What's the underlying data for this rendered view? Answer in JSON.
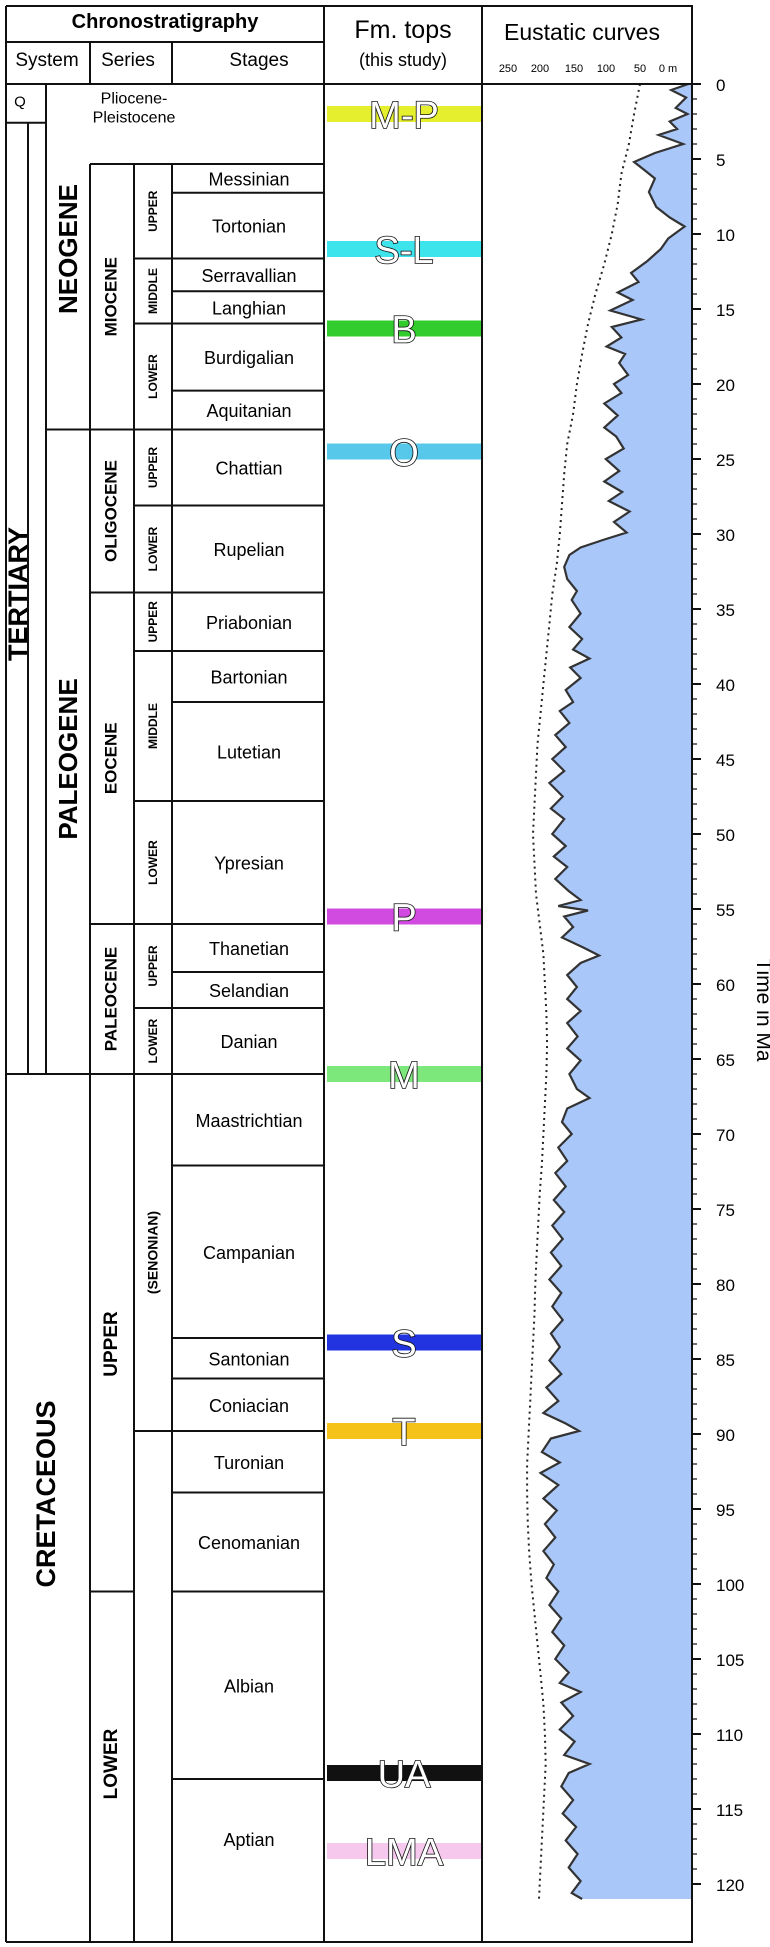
{
  "headers": {
    "chronostratigraphy": "Chronostratigraphy",
    "system": "System",
    "series": "Series",
    "stages": "Stages",
    "fm_tops": "Fm. tops",
    "this_study": "(this study)",
    "eustatic": "Eustatic curves",
    "time_label": "Time in Ma"
  },
  "curve_axis_ticks": [
    "250",
    "200",
    "150",
    "100",
    "50",
    "0 m"
  ],
  "time_ticks": [
    "0",
    "5",
    "10",
    "15",
    "20",
    "25",
    "30",
    "35",
    "40",
    "45",
    "50",
    "55",
    "60",
    "65",
    "70",
    "75",
    "80",
    "85",
    "90",
    "95",
    "100",
    "105",
    "110",
    "115",
    "120"
  ],
  "systems": [
    {
      "name": "Q",
      "top": 0,
      "base": 2.58
    },
    {
      "name": "TERTIARY",
      "top": 2.58,
      "base": 66
    },
    {
      "name": "NEOGENE",
      "top": 2.58,
      "base": 23.03
    },
    {
      "name": "PALEOGENE",
      "top": 23.03,
      "base": 66
    },
    {
      "name": "CRETACEOUS",
      "top": 66,
      "base": 121
    }
  ],
  "series": [
    {
      "name": "Pliocene-Pleistocene",
      "top": 0,
      "base": 5.33
    },
    {
      "name": "MIOCENE",
      "top": 5.33,
      "base": 23.03
    },
    {
      "name": "OLIGOCENE",
      "top": 23.03,
      "base": 33.9
    },
    {
      "name": "EOCENE",
      "top": 33.9,
      "base": 56
    },
    {
      "name": "PALEOCENE",
      "top": 56,
      "base": 66
    },
    {
      "name": "UPPER",
      "top": 66,
      "base": 100.5
    },
    {
      "name": "LOWER",
      "top": 100.5,
      "base": 121
    }
  ],
  "subseries": [
    {
      "name": "UPPER",
      "top": 5.33,
      "base": 11.63
    },
    {
      "name": "MIDDLE",
      "top": 11.63,
      "base": 15.97
    },
    {
      "name": "LOWER",
      "top": 15.97,
      "base": 23.03
    },
    {
      "name": "UPPER",
      "top": 23.03,
      "base": 28.1
    },
    {
      "name": "LOWER",
      "top": 28.1,
      "base": 33.9
    },
    {
      "name": "UPPER",
      "top": 33.9,
      "base": 37.8
    },
    {
      "name": "MIDDLE",
      "top": 37.8,
      "base": 47.8
    },
    {
      "name": "LOWER",
      "top": 47.8,
      "base": 56
    },
    {
      "name": "UPPER",
      "top": 56,
      "base": 61.6
    },
    {
      "name": "LOWER",
      "top": 61.6,
      "base": 66
    },
    {
      "name": "(SENONIAN)",
      "top": 66,
      "base": 89.8
    }
  ],
  "stages": [
    {
      "name": "Messinian",
      "top": 5.33,
      "base": 7.25
    },
    {
      "name": "Tortonian",
      "top": 7.25,
      "base": 11.63
    },
    {
      "name": "Serravallian",
      "top": 11.63,
      "base": 13.82
    },
    {
      "name": "Langhian",
      "top": 13.82,
      "base": 15.97
    },
    {
      "name": "Burdigalian",
      "top": 15.97,
      "base": 20.44
    },
    {
      "name": "Aquitanian",
      "top": 20.44,
      "base": 23.03
    },
    {
      "name": "Chattian",
      "top": 23.03,
      "base": 28.1
    },
    {
      "name": "Rupelian",
      "top": 28.1,
      "base": 33.9
    },
    {
      "name": "Priabonian",
      "top": 33.9,
      "base": 37.8
    },
    {
      "name": "Bartonian",
      "top": 37.8,
      "base": 41.2
    },
    {
      "name": "Lutetian",
      "top": 41.2,
      "base": 47.8
    },
    {
      "name": "Ypresian",
      "top": 47.8,
      "base": 56
    },
    {
      "name": "Thanetian",
      "top": 56,
      "base": 59.2
    },
    {
      "name": "Selandian",
      "top": 59.2,
      "base": 61.6
    },
    {
      "name": "Danian",
      "top": 61.6,
      "base": 66
    },
    {
      "name": "Maastrichtian",
      "top": 66,
      "base": 72.1
    },
    {
      "name": "Campanian",
      "top": 72.1,
      "base": 83.6
    },
    {
      "name": "Santonian",
      "top": 83.6,
      "base": 86.3
    },
    {
      "name": "Coniacian",
      "top": 86.3,
      "base": 89.8
    },
    {
      "name": "Turonian",
      "top": 89.8,
      "base": 93.9
    },
    {
      "name": "Cenomanian",
      "top": 93.9,
      "base": 100.5
    },
    {
      "name": "Albian",
      "top": 100.5,
      "base": 113
    },
    {
      "name": "Aptian",
      "top": 113,
      "base": 121
    }
  ],
  "formation_tops": [
    {
      "label": "M-P",
      "age": 2.0,
      "color": "#e6ef2e"
    },
    {
      "label": "S-L",
      "age": 11.0,
      "color": "#3ee4ec"
    },
    {
      "label": "B",
      "age": 16.3,
      "color": "#33cc2e"
    },
    {
      "label": "O",
      "age": 24.5,
      "color": "#57c8ea"
    },
    {
      "label": "P",
      "age": 55.5,
      "color": "#d24be0"
    },
    {
      "label": "M",
      "age": 66.0,
      "color": "#7ce87c"
    },
    {
      "label": "S",
      "age": 83.9,
      "color": "#2233e0"
    },
    {
      "label": "T",
      "age": 89.8,
      "color": "#f5c21a"
    },
    {
      "label": "UA",
      "age": 112.6,
      "color": "#111111"
    },
    {
      "label": "LMA",
      "age": 117.8,
      "color": "#f6c8ee"
    }
  ],
  "chart_data": {
    "type": "line",
    "x_unit": "m",
    "xlim": [
      280,
      0
    ],
    "ylim": [
      0,
      121
    ],
    "fill_color": "#a9c7f8",
    "short_term_curve": [
      [
        5,
        0
      ],
      [
        28,
        0.4
      ],
      [
        8,
        0.9
      ],
      [
        22,
        1.6
      ],
      [
        6,
        2.0
      ],
      [
        30,
        2.5
      ],
      [
        20,
        3.0
      ],
      [
        45,
        3.4
      ],
      [
        12,
        4.0
      ],
      [
        50,
        4.6
      ],
      [
        78,
        5.2
      ],
      [
        65,
        5.7
      ],
      [
        50,
        6.3
      ],
      [
        58,
        7.2
      ],
      [
        48,
        8.2
      ],
      [
        30,
        8.9
      ],
      [
        10,
        9.5
      ],
      [
        32,
        10.3
      ],
      [
        42,
        11.0
      ],
      [
        60,
        11.8
      ],
      [
        82,
        12.6
      ],
      [
        72,
        13.2
      ],
      [
        100,
        13.9
      ],
      [
        80,
        14.4
      ],
      [
        110,
        15.1
      ],
      [
        68,
        15.7
      ],
      [
        108,
        16.2
      ],
      [
        95,
        16.9
      ],
      [
        115,
        17.5
      ],
      [
        90,
        18.0
      ],
      [
        98,
        18.6
      ],
      [
        86,
        19.4
      ],
      [
        105,
        20.0
      ],
      [
        95,
        20.6
      ],
      [
        118,
        21.3
      ],
      [
        100,
        22.1
      ],
      [
        118,
        22.9
      ],
      [
        102,
        23.5
      ],
      [
        92,
        24.3
      ],
      [
        116,
        25.0
      ],
      [
        98,
        25.8
      ],
      [
        118,
        26.5
      ],
      [
        94,
        27.2
      ],
      [
        112,
        27.8
      ],
      [
        84,
        28.5
      ],
      [
        105,
        29.2
      ],
      [
        88,
        29.9
      ],
      [
        120,
        30.4
      ],
      [
        150,
        30.9
      ],
      [
        165,
        31.4
      ],
      [
        172,
        32.2
      ],
      [
        168,
        33.0
      ],
      [
        155,
        33.8
      ],
      [
        162,
        34.4
      ],
      [
        150,
        35.3
      ],
      [
        165,
        36.2
      ],
      [
        148,
        37.0
      ],
      [
        160,
        37.7
      ],
      [
        138,
        38.3
      ],
      [
        164,
        38.9
      ],
      [
        150,
        39.6
      ],
      [
        170,
        40.4
      ],
      [
        160,
        41.2
      ],
      [
        178,
        41.8
      ],
      [
        165,
        42.6
      ],
      [
        184,
        43.4
      ],
      [
        170,
        44.2
      ],
      [
        188,
        45.0
      ],
      [
        172,
        45.8
      ],
      [
        192,
        46.6
      ],
      [
        174,
        47.5
      ],
      [
        190,
        48.3
      ],
      [
        172,
        49.0
      ],
      [
        188,
        50.0
      ],
      [
        170,
        50.8
      ],
      [
        186,
        51.5
      ],
      [
        168,
        52.2
      ],
      [
        184,
        53.0
      ],
      [
        166,
        53.8
      ],
      [
        150,
        54.4
      ],
      [
        180,
        54.8
      ],
      [
        140,
        55.1
      ],
      [
        172,
        55.5
      ],
      [
        160,
        56.2
      ],
      [
        175,
        56.9
      ],
      [
        145,
        57.6
      ],
      [
        125,
        58.1
      ],
      [
        150,
        58.6
      ],
      [
        168,
        59.4
      ],
      [
        155,
        60.2
      ],
      [
        168,
        61.0
      ],
      [
        150,
        61.8
      ],
      [
        168,
        62.6
      ],
      [
        154,
        63.5
      ],
      [
        168,
        64.3
      ],
      [
        150,
        65.1
      ],
      [
        165,
        66.0
      ],
      [
        155,
        67.0
      ],
      [
        138,
        67.6
      ],
      [
        168,
        68.3
      ],
      [
        175,
        69.2
      ],
      [
        162,
        70.0
      ],
      [
        180,
        70.9
      ],
      [
        168,
        71.8
      ],
      [
        184,
        72.6
      ],
      [
        170,
        73.5
      ],
      [
        186,
        74.4
      ],
      [
        172,
        75.2
      ],
      [
        188,
        76.1
      ],
      [
        174,
        77.0
      ],
      [
        190,
        77.9
      ],
      [
        176,
        78.8
      ],
      [
        192,
        79.7
      ],
      [
        176,
        80.6
      ],
      [
        188,
        81.5
      ],
      [
        174,
        82.4
      ],
      [
        190,
        83.3
      ],
      [
        178,
        84.2
      ],
      [
        192,
        85.1
      ],
      [
        176,
        86.0
      ],
      [
        196,
        86.9
      ],
      [
        180,
        87.8
      ],
      [
        200,
        88.6
      ],
      [
        170,
        89.3
      ],
      [
        152,
        89.8
      ],
      [
        190,
        90.3
      ],
      [
        202,
        91.2
      ],
      [
        178,
        91.9
      ],
      [
        204,
        92.6
      ],
      [
        180,
        93.4
      ],
      [
        200,
        94.3
      ],
      [
        182,
        95.1
      ],
      [
        198,
        96.0
      ],
      [
        184,
        96.9
      ],
      [
        200,
        97.8
      ],
      [
        186,
        98.7
      ],
      [
        196,
        99.6
      ],
      [
        180,
        100.5
      ],
      [
        192,
        101.4
      ],
      [
        176,
        102.3
      ],
      [
        188,
        103.2
      ],
      [
        172,
        104.1
      ],
      [
        184,
        105.0
      ],
      [
        166,
        105.9
      ],
      [
        178,
        106.6
      ],
      [
        150,
        107.2
      ],
      [
        176,
        107.9
      ],
      [
        160,
        108.8
      ],
      [
        178,
        109.7
      ],
      [
        158,
        110.5
      ],
      [
        172,
        111.4
      ],
      [
        138,
        112.0
      ],
      [
        166,
        112.6
      ],
      [
        176,
        113.5
      ],
      [
        160,
        114.4
      ],
      [
        174,
        115.3
      ],
      [
        156,
        116.2
      ],
      [
        170,
        117.1
      ],
      [
        154,
        118.0
      ],
      [
        166,
        118.9
      ],
      [
        150,
        119.8
      ],
      [
        162,
        120.6
      ],
      [
        148,
        121
      ]
    ],
    "long_term_curve": [
      [
        70,
        0
      ],
      [
        78,
        2
      ],
      [
        85,
        4
      ],
      [
        95,
        6
      ],
      [
        100,
        8
      ],
      [
        108,
        10
      ],
      [
        118,
        12
      ],
      [
        130,
        14
      ],
      [
        140,
        16
      ],
      [
        148,
        18
      ],
      [
        155,
        20
      ],
      [
        160,
        22
      ],
      [
        168,
        24
      ],
      [
        172,
        26
      ],
      [
        175,
        28
      ],
      [
        178,
        30
      ],
      [
        182,
        32
      ],
      [
        188,
        34
      ],
      [
        192,
        36
      ],
      [
        196,
        38
      ],
      [
        200,
        40
      ],
      [
        204,
        42
      ],
      [
        208,
        44
      ],
      [
        210,
        46
      ],
      [
        212,
        48
      ],
      [
        214,
        50
      ],
      [
        212,
        52
      ],
      [
        210,
        54
      ],
      [
        205,
        56
      ],
      [
        200,
        58
      ],
      [
        198,
        60
      ],
      [
        196,
        62
      ],
      [
        195,
        64
      ],
      [
        196,
        66
      ],
      [
        198,
        68
      ],
      [
        200,
        70
      ],
      [
        202,
        72
      ],
      [
        205,
        74
      ],
      [
        207,
        76
      ],
      [
        209,
        78
      ],
      [
        211,
        80
      ],
      [
        212,
        82
      ],
      [
        214,
        84
      ],
      [
        216,
        86
      ],
      [
        218,
        88
      ],
      [
        220,
        90
      ],
      [
        222,
        92
      ],
      [
        222,
        94
      ],
      [
        221,
        96
      ],
      [
        219,
        98
      ],
      [
        216,
        100
      ],
      [
        212,
        102
      ],
      [
        208,
        104
      ],
      [
        204,
        106
      ],
      [
        200,
        108
      ],
      [
        198,
        110
      ],
      [
        197,
        112
      ],
      [
        199,
        114
      ],
      [
        201,
        116
      ],
      [
        203,
        118
      ],
      [
        205,
        120
      ],
      [
        206,
        121
      ]
    ]
  }
}
